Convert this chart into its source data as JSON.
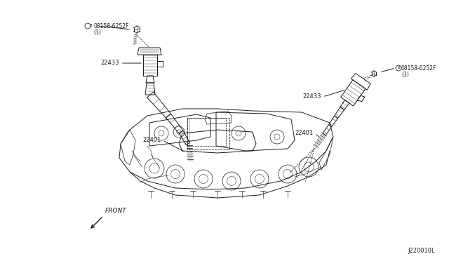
{
  "bg_color": "#ffffff",
  "line_color": "#1a1a1a",
  "text_color": "#1a1a1a",
  "diagram_id": "J220010L",
  "label_screw": "08158-6252F",
  "label_screw2": "(3)",
  "label_coil": "22433",
  "label_wire": "22401",
  "label_front": "FRONT",
  "figsize": [
    6.4,
    3.72
  ],
  "dpi": 100
}
